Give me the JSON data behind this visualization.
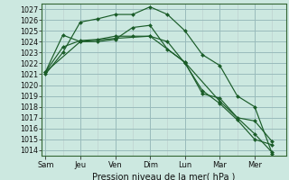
{
  "background_color": "#cce8e0",
  "grid_major_color": "#99bbbb",
  "grid_minor_color": "#bbcccc",
  "line_color": "#1a5c28",
  "marker_color": "#1a5c28",
  "xlabel": "Pression niveau de la mer( hPa )",
  "ylim": [
    1013.5,
    1027.5
  ],
  "yticks": [
    1014,
    1015,
    1016,
    1017,
    1018,
    1019,
    1020,
    1021,
    1022,
    1023,
    1024,
    1025,
    1026,
    1027
  ],
  "day_labels": [
    "Sam",
    "Jeu",
    "Ven",
    "Dim",
    "Lun",
    "Mar",
    "Mer"
  ],
  "day_positions": [
    0,
    2,
    4,
    6,
    8,
    10,
    12
  ],
  "xlim": [
    -0.2,
    13.8
  ],
  "series": [
    {
      "x": [
        0,
        1,
        2,
        3,
        4,
        5,
        6,
        7,
        8,
        9,
        10,
        11,
        12,
        13
      ],
      "y": [
        1021.0,
        1023.0,
        1025.8,
        1026.1,
        1026.5,
        1026.5,
        1027.2,
        1026.5,
        1025.0,
        1022.8,
        1021.8,
        1019.0,
        1018.0,
        1013.7
      ]
    },
    {
      "x": [
        0,
        1,
        2,
        3,
        4,
        5,
        6,
        7,
        8,
        9,
        10,
        11,
        12,
        13
      ],
      "y": [
        1021.2,
        1024.6,
        1024.0,
        1024.0,
        1024.2,
        1025.3,
        1025.5,
        1023.3,
        1022.1,
        1019.2,
        1018.8,
        1017.0,
        1016.7,
        1014.8
      ]
    },
    {
      "x": [
        0,
        1,
        2,
        3,
        4,
        5,
        6,
        7,
        8,
        9,
        10,
        11,
        12,
        13
      ],
      "y": [
        1021.2,
        1023.5,
        1024.1,
        1024.2,
        1024.5,
        1024.5,
        1024.5,
        1024.0,
        1022.0,
        1019.5,
        1018.3,
        1016.8,
        1015.0,
        1014.5
      ]
    },
    {
      "x": [
        0,
        2,
        4,
        6,
        8,
        10,
        12,
        13
      ],
      "y": [
        1021.2,
        1024.0,
        1024.3,
        1024.5,
        1022.1,
        1018.5,
        1015.5,
        1013.8
      ]
    }
  ]
}
